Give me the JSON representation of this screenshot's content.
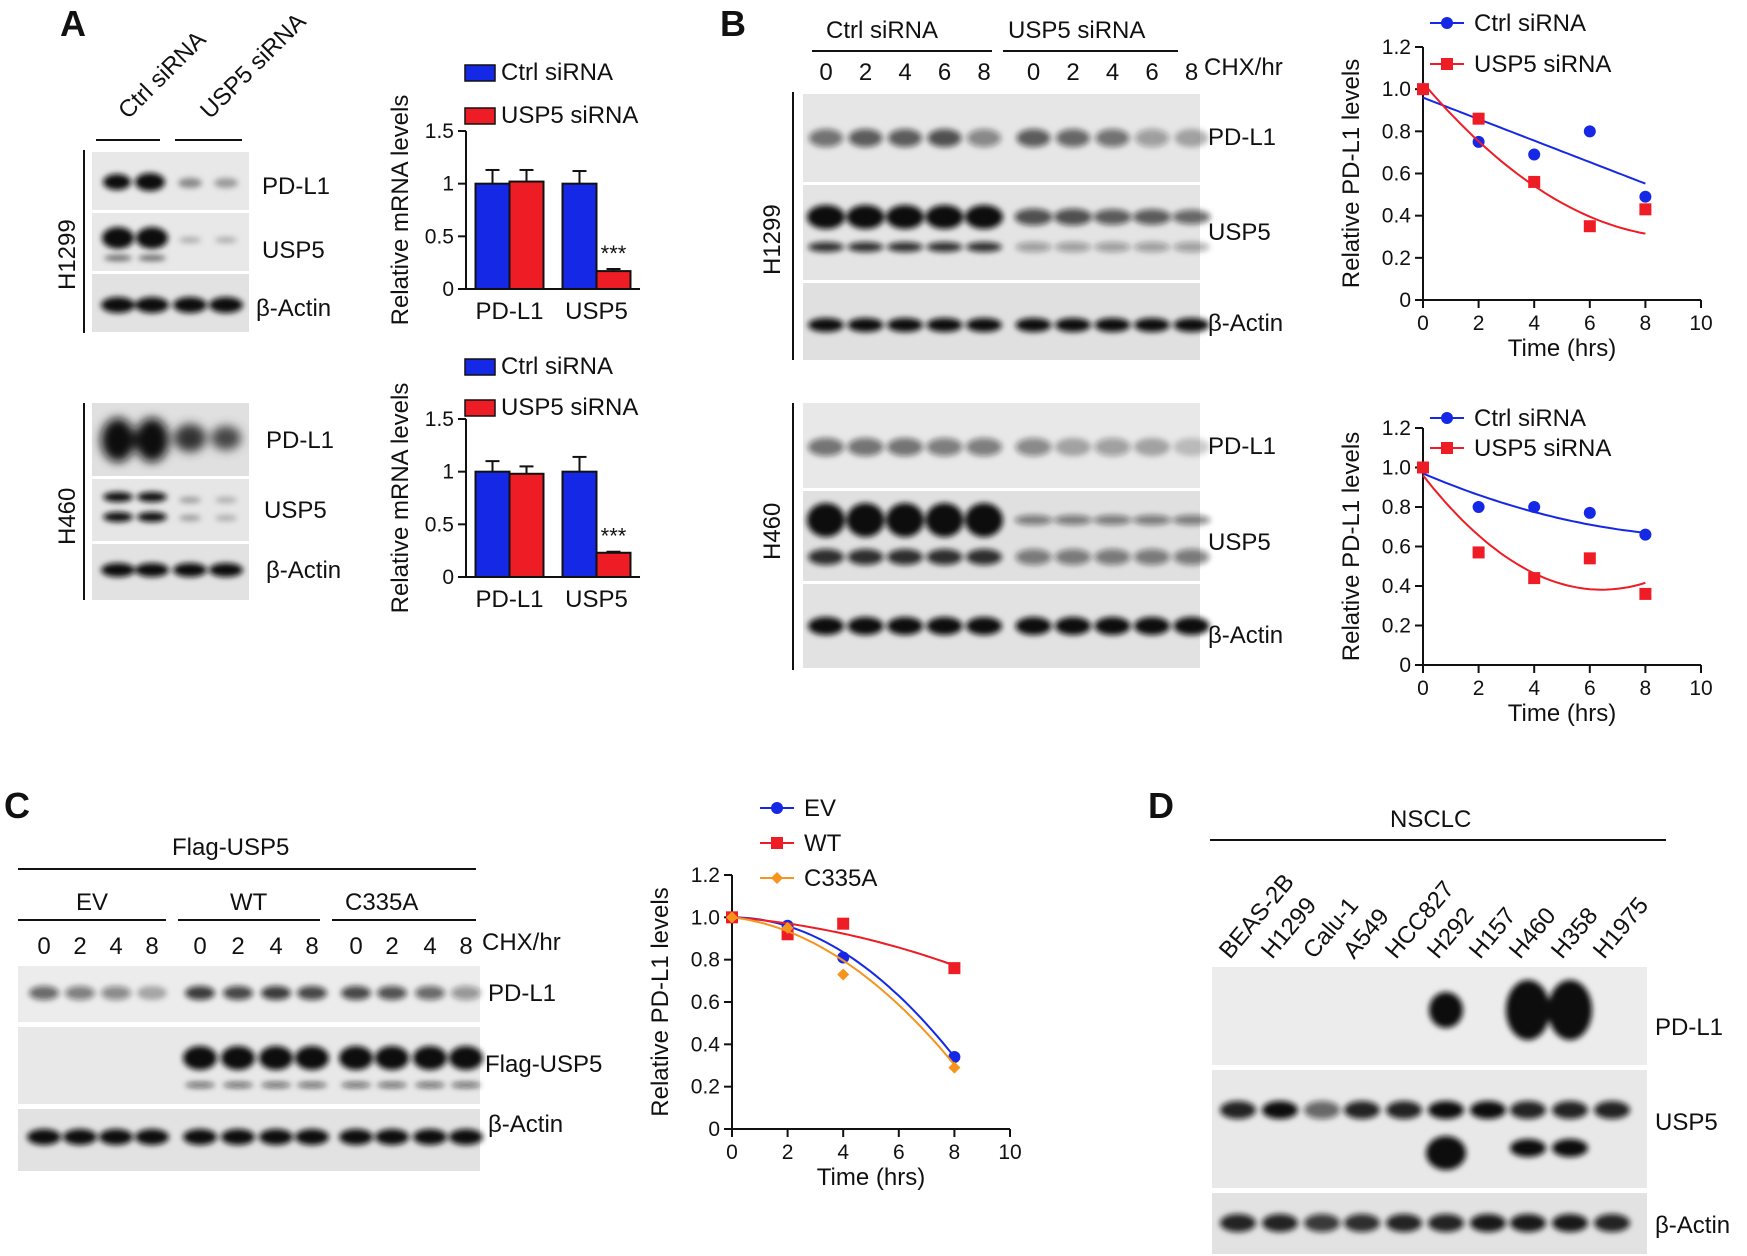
{
  "panels": {
    "A": "A",
    "B": "B",
    "C": "C",
    "D": "D"
  },
  "groups": {
    "ctrl": "Ctrl siRNA",
    "usp5": "USP5 siRNA",
    "flag_usp5": "Flag-USP5",
    "ev": "EV",
    "wt": "WT",
    "c335a": "C335A",
    "nsclc": "NSCLC"
  },
  "cells": {
    "h1299": "H1299",
    "h460": "H460"
  },
  "bands": {
    "pdl1": "PD-L1",
    "usp5": "USP5",
    "actin": "β-Actin",
    "flag_usp5": "Flag-USP5"
  },
  "chx": "CHX/hr",
  "times_b": [
    "0",
    "2",
    "4",
    "6",
    "8",
    "0",
    "2",
    "4",
    "6",
    "8"
  ],
  "times_c": [
    "0",
    "2",
    "4",
    "8",
    "0",
    "2",
    "4",
    "8",
    "0",
    "2",
    "4",
    "8"
  ],
  "lines_d": [
    "BEAS-2B",
    "H1299",
    "Calu-1",
    "A549",
    "HCC827",
    "H292",
    "H157",
    "H460",
    "H358",
    "H1975"
  ],
  "colors": {
    "red": "#ee1c24",
    "blue": "#1428e6",
    "orange": "#f7941d"
  },
  "chart_data": [
    {
      "id": "A1",
      "type": "bar",
      "categories": [
        "PD-L1",
        "USP5"
      ],
      "ylabel": "Relative mRNA levels",
      "ylim": [
        0,
        1.5
      ],
      "yticks": [
        "0",
        "0.5",
        "1",
        "1.5"
      ],
      "series": [
        {
          "name": "Ctrl siRNA",
          "values": [
            1.0,
            1.0
          ],
          "err": [
            0.13,
            0.12
          ]
        },
        {
          "name": "USP5 siRNA",
          "values": [
            1.02,
            0.17
          ],
          "err": [
            0.11,
            0.02
          ]
        }
      ],
      "annotation": "***"
    },
    {
      "id": "A2",
      "type": "bar",
      "categories": [
        "PD-L1",
        "USP5"
      ],
      "ylabel": "Relative mRNA levels",
      "ylim": [
        0,
        1.5
      ],
      "yticks": [
        "0",
        "0.5",
        "1",
        "1.5"
      ],
      "series": [
        {
          "name": "Ctrl siRNA",
          "values": [
            1.0,
            1.0
          ],
          "err": [
            0.1,
            0.14
          ]
        },
        {
          "name": "USP5 siRNA",
          "values": [
            0.98,
            0.23
          ],
          "err": [
            0.07,
            0.01
          ]
        }
      ],
      "annotation": "***"
    },
    {
      "id": "B1",
      "type": "scatter",
      "xlabel": "Time (hrs)",
      "ylabel": "Relative PD-L1 levels",
      "xlim": [
        0,
        10
      ],
      "ylim": [
        0,
        1.2
      ],
      "xticks": [
        "0",
        "2",
        "4",
        "6",
        "8",
        "10"
      ],
      "yticks": [
        "0",
        "0.2",
        "0.4",
        "0.6",
        "0.8",
        "1.0",
        "1.2"
      ],
      "series": [
        {
          "name": "Ctrl siRNA",
          "x": [
            0,
            2,
            4,
            6,
            8
          ],
          "y": [
            1.0,
            0.75,
            0.69,
            0.8,
            0.49
          ],
          "fit": [
            0.96,
            -0.051,
            0
          ]
        },
        {
          "name": "USP5 siRNA",
          "x": [
            0,
            2,
            4,
            6,
            8
          ],
          "y": [
            1.0,
            0.86,
            0.56,
            0.35,
            0.43
          ],
          "fit": [
            1.03,
            -0.155,
            0.0082
          ]
        }
      ]
    },
    {
      "id": "B2",
      "type": "scatter",
      "xlabel": "Time (hrs)",
      "ylabel": "Relative PD-L1 levels",
      "xlim": [
        0,
        10
      ],
      "ylim": [
        0,
        1.2
      ],
      "xticks": [
        "0",
        "2",
        "4",
        "6",
        "8",
        "10"
      ],
      "yticks": [
        "0",
        "0.2",
        "0.4",
        "0.6",
        "0.8",
        "1.0",
        "1.2"
      ],
      "series": [
        {
          "name": "Ctrl siRNA",
          "x": [
            0,
            2,
            4,
            6,
            8
          ],
          "y": [
            1.0,
            0.8,
            0.8,
            0.77,
            0.66
          ],
          "fit": [
            0.97,
            -0.06,
            0.0028
          ]
        },
        {
          "name": "USP5 siRNA",
          "x": [
            0,
            2,
            4,
            6,
            8
          ],
          "y": [
            1.0,
            0.57,
            0.44,
            0.54,
            0.36
          ],
          "fit": [
            0.96,
            -0.18,
            0.014
          ]
        }
      ]
    },
    {
      "id": "C",
      "type": "scatter",
      "xlabel": "Time (hrs)",
      "ylabel": "Relative PD-L1 levels",
      "xlim": [
        0,
        10
      ],
      "ylim": [
        0,
        1.2
      ],
      "xticks": [
        "0",
        "2",
        "4",
        "6",
        "8",
        "10"
      ],
      "yticks": [
        "0",
        "0.2",
        "0.4",
        "0.6",
        "0.8",
        "1.0",
        "1.2"
      ],
      "series": [
        {
          "name": "EV",
          "x": [
            0,
            2,
            4,
            8
          ],
          "y": [
            1.0,
            0.96,
            0.81,
            0.34
          ],
          "fit": [
            1.0,
            0.0,
            -0.0103
          ]
        },
        {
          "name": "WT",
          "x": [
            0,
            2,
            4,
            8
          ],
          "y": [
            1.0,
            0.92,
            0.97,
            0.76
          ],
          "fit": [
            1.0,
            -0.01,
            -0.0023
          ]
        },
        {
          "name": "C335A",
          "x": [
            0,
            2,
            4,
            8
          ],
          "y": [
            1.0,
            0.95,
            0.73,
            0.29
          ],
          "fit": [
            1.0,
            -0.015,
            -0.009
          ]
        }
      ]
    }
  ]
}
